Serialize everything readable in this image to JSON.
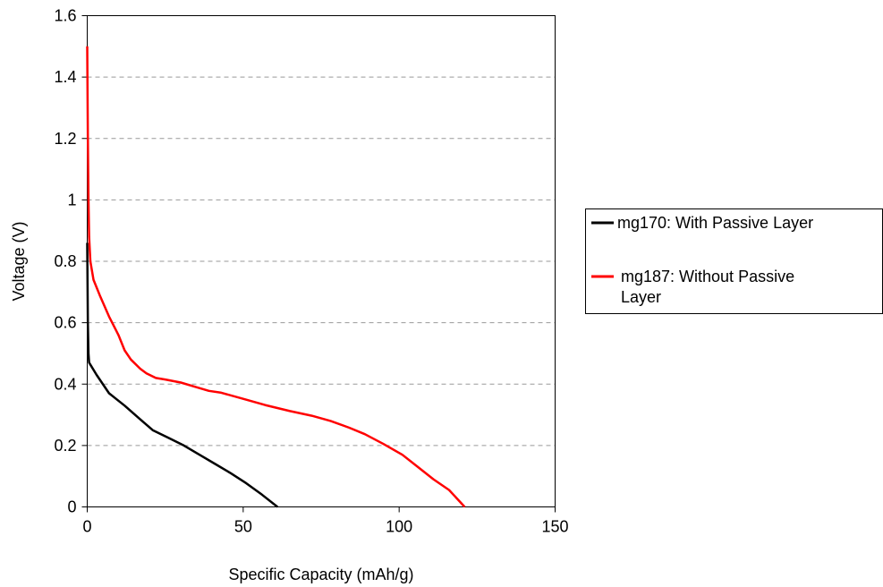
{
  "chart_data": {
    "type": "line",
    "xlabel": "Specific Capacity (mAh/g)",
    "ylabel": "Voltage (V)",
    "xlim": [
      0,
      150
    ],
    "ylim": [
      0,
      1.6
    ],
    "x_ticks": [
      "0",
      "50",
      "100",
      "150"
    ],
    "y_ticks": [
      "0",
      "0.2",
      "0.4",
      "0.6",
      "0.8",
      "1",
      "1.2",
      "1.4",
      "1.6"
    ],
    "grid": "horizontal dashed",
    "legend_position": "right",
    "series": [
      {
        "name": "mg170: With Passive Layer",
        "color": "#000000",
        "points": [
          [
            0,
            0.86
          ],
          [
            0.2,
            0.6
          ],
          [
            0.4,
            0.5
          ],
          [
            0.6,
            0.47
          ],
          [
            3,
            0.43
          ],
          [
            7,
            0.37
          ],
          [
            12,
            0.33
          ],
          [
            17,
            0.285
          ],
          [
            21,
            0.25
          ],
          [
            26,
            0.225
          ],
          [
            31,
            0.2
          ],
          [
            36,
            0.17
          ],
          [
            41,
            0.14
          ],
          [
            46,
            0.11
          ],
          [
            51,
            0.077
          ],
          [
            56,
            0.04
          ],
          [
            61,
            0.0
          ]
        ]
      },
      {
        "name": "mg187: Without Passive Layer",
        "color": "#ff0000",
        "points": [
          [
            0,
            1.5
          ],
          [
            0.2,
            1.2
          ],
          [
            0.4,
            1.0
          ],
          [
            0.6,
            0.88
          ],
          [
            1,
            0.8
          ],
          [
            2,
            0.74
          ],
          [
            4,
            0.69
          ],
          [
            7,
            0.62
          ],
          [
            10,
            0.56
          ],
          [
            12,
            0.51
          ],
          [
            14,
            0.48
          ],
          [
            17,
            0.45
          ],
          [
            19,
            0.435
          ],
          [
            22,
            0.42
          ],
          [
            25,
            0.415
          ],
          [
            30,
            0.405
          ],
          [
            35,
            0.39
          ],
          [
            39,
            0.378
          ],
          [
            43,
            0.372
          ],
          [
            50,
            0.352
          ],
          [
            57,
            0.332
          ],
          [
            65,
            0.312
          ],
          [
            72,
            0.297
          ],
          [
            78,
            0.28
          ],
          [
            84,
            0.258
          ],
          [
            89,
            0.237
          ],
          [
            95,
            0.205
          ],
          [
            101,
            0.17
          ],
          [
            106,
            0.13
          ],
          [
            111,
            0.09
          ],
          [
            116,
            0.055
          ],
          [
            121,
            0.0
          ]
        ]
      }
    ]
  }
}
